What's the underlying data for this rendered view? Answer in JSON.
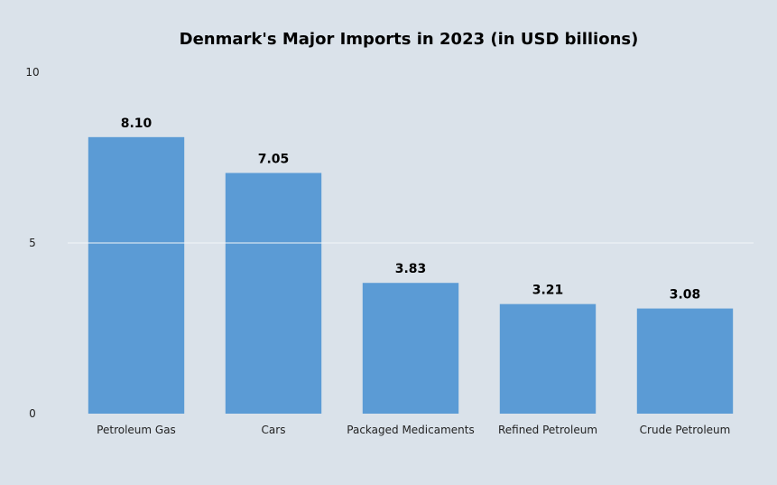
{
  "chart_data": {
    "type": "bar",
    "title": "Denmark's Major Imports in 2023 (in USD billions)",
    "xlabel": "",
    "ylabel": "",
    "categories": [
      "Petroleum Gas",
      "Cars",
      "Packaged Medicaments",
      "Refined Petroleum",
      "Crude Petroleum"
    ],
    "values": [
      8.1,
      7.05,
      3.83,
      3.21,
      3.08
    ],
    "value_labels": [
      "8.10",
      "7.05",
      "3.83",
      "3.21",
      "3.08"
    ],
    "ylim": [
      0,
      10
    ],
    "yticks": [
      0,
      5,
      10
    ],
    "ytick_labels": [
      "0",
      "5",
      "10"
    ],
    "grid": true,
    "legend": "none"
  },
  "colors": {
    "background": "#dae2ea",
    "bar": "#5b9bd5",
    "gridline": "#f2f5f8"
  }
}
